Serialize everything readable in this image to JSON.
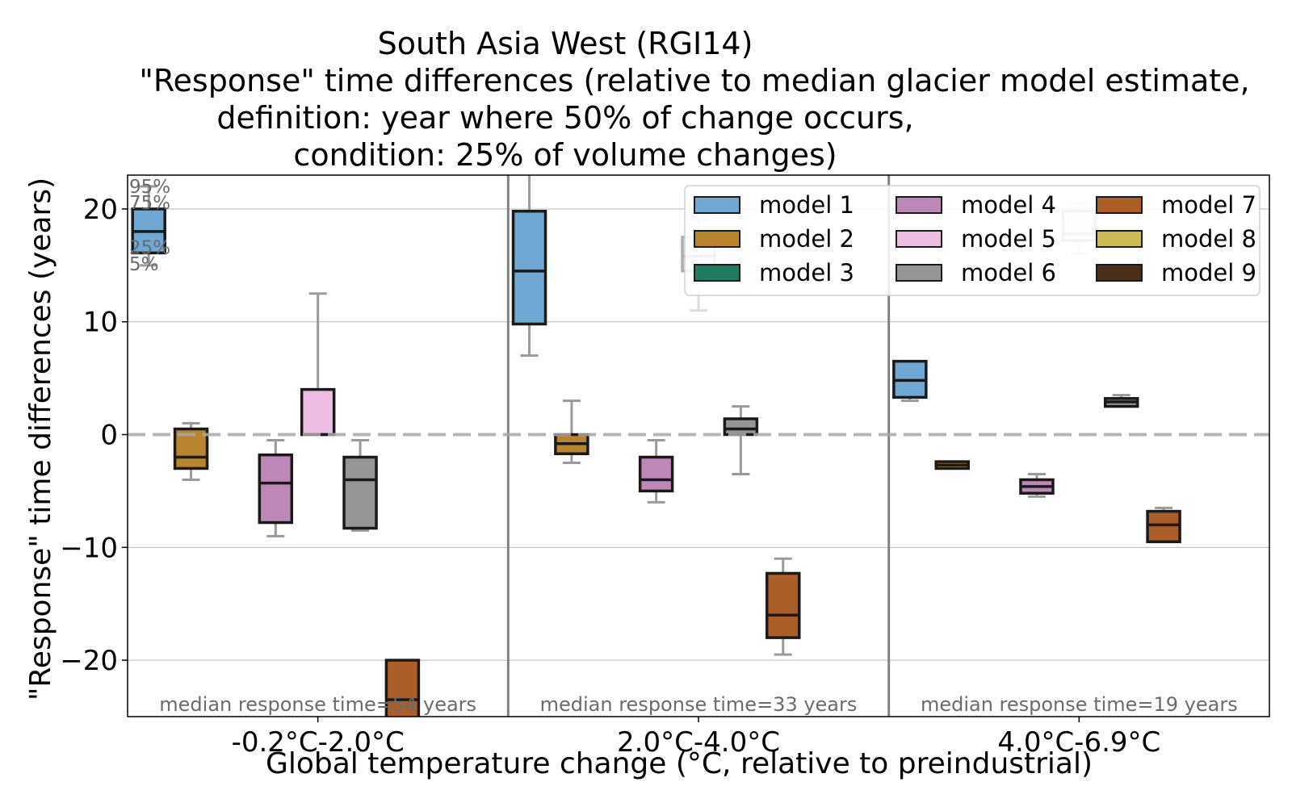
{
  "chart_data": {
    "type": "box",
    "title_lines": [
      "South Asia West (RGI14)",
      "\"Response\" time differences (relative to median glacier model estimate,",
      "definition: year where 50% of change occurs,",
      "condition: 25% of volume changes)"
    ],
    "xlabel": "Global temperature change (°C, relative to preindustrial)",
    "ylabel": "\"Response\" time differences (years)",
    "ylim": [
      -25,
      23
    ],
    "yticks": [
      20,
      10,
      0,
      -10,
      -20
    ],
    "ytick_labels": [
      "20",
      "10",
      "0",
      "−10",
      "−20"
    ],
    "grid": true,
    "legend_position": "top-right",
    "percentile_labels": [
      "95%",
      "75%",
      "25%",
      "5%"
    ],
    "groups": [
      {
        "label": "-0.2°C-2.0°C",
        "median_text": "median response time=54 years"
      },
      {
        "label": "2.0°C-4.0°C",
        "median_text": "median response time=33 years"
      },
      {
        "label": "4.0°C-6.9°C",
        "median_text": "median response time=19 years"
      }
    ],
    "series": [
      {
        "name": "model 1",
        "color": "#6fa8d2"
      },
      {
        "name": "model 2",
        "color": "#b9842e"
      },
      {
        "name": "model 3",
        "color": "#1f7b5f"
      },
      {
        "name": "model 4",
        "color": "#bd88b6"
      },
      {
        "name": "model 5",
        "color": "#ecbde0"
      },
      {
        "name": "model 6",
        "color": "#959595"
      },
      {
        "name": "model 7",
        "color": "#ab5e27"
      },
      {
        "name": "model 8",
        "color": "#cbbb52"
      },
      {
        "name": "model 9",
        "color": "#4a2f1a"
      }
    ],
    "boxes": [
      {
        "group": 0,
        "model": 0,
        "p5": 15,
        "q1": 16.1,
        "median": 18,
        "q3": 20,
        "p95": 22,
        "faded": false
      },
      {
        "group": 0,
        "model": 1,
        "p5": -4,
        "q1": -3,
        "median": -2,
        "q3": 0.5,
        "p95": 1,
        "faded": false
      },
      {
        "group": 0,
        "model": 3,
        "p5": -9,
        "q1": -7.8,
        "median": -4.3,
        "q3": -1.8,
        "p95": -0.5,
        "faded": false
      },
      {
        "group": 0,
        "model": 4,
        "p5": 0,
        "q1": 0,
        "median": 0,
        "q3": 4,
        "p95": 12.5,
        "faded": false
      },
      {
        "group": 0,
        "model": 5,
        "p5": -8.5,
        "q1": -8.3,
        "median": -4,
        "q3": -2,
        "p95": -0.5,
        "faded": false
      },
      {
        "group": 0,
        "model": 6,
        "p5": -26,
        "q1": -26,
        "median": -23.5,
        "q3": -20,
        "p95": -20,
        "faded": false
      },
      {
        "group": 1,
        "model": 0,
        "p5": 7,
        "q1": 9.8,
        "median": 14.5,
        "q3": 19.8,
        "p95": 24,
        "faded": false
      },
      {
        "group": 1,
        "model": 1,
        "p5": -2.5,
        "q1": -1.7,
        "median": -0.8,
        "q3": 0,
        "p95": 3,
        "faded": false
      },
      {
        "group": 1,
        "model": 3,
        "p5": -6,
        "q1": -5,
        "median": -4,
        "q3": -2,
        "p95": -0.5,
        "faded": false
      },
      {
        "group": 1,
        "model": 4,
        "p5": 11,
        "q1": 14.5,
        "median": 15.8,
        "q3": 17.5,
        "p95": 19,
        "faded": true
      },
      {
        "group": 1,
        "model": 5,
        "p5": -3.5,
        "q1": 0,
        "median": 0.5,
        "q3": 1.4,
        "p95": 2.5,
        "faded": false
      },
      {
        "group": 1,
        "model": 6,
        "p5": -19.5,
        "q1": -18,
        "median": -16,
        "q3": -12.3,
        "p95": -11,
        "faded": false
      },
      {
        "group": 2,
        "model": 0,
        "p5": 3,
        "q1": 3.3,
        "median": 4.8,
        "q3": 6.5,
        "p95": 6.5,
        "faded": false
      },
      {
        "group": 2,
        "model": 1,
        "p5": -3,
        "q1": -3,
        "median": -2.7,
        "q3": -2.4,
        "p95": -2.4,
        "faded": false
      },
      {
        "group": 2,
        "model": 3,
        "p5": -5.5,
        "q1": -5.2,
        "median": -4.6,
        "q3": -4,
        "p95": -3.5,
        "faded": false
      },
      {
        "group": 2,
        "model": 4,
        "p5": 16,
        "q1": 17.2,
        "median": 17.8,
        "q3": 19.8,
        "p95": 20.5,
        "faded": true
      },
      {
        "group": 2,
        "model": 5,
        "p5": 2.5,
        "q1": 2.5,
        "median": 2.9,
        "q3": 3.2,
        "p95": 3.5,
        "faded": false
      },
      {
        "group": 2,
        "model": 6,
        "p5": -9.5,
        "q1": -9.5,
        "median": -8,
        "q3": -6.8,
        "p95": -6.5,
        "faded": false
      }
    ]
  }
}
